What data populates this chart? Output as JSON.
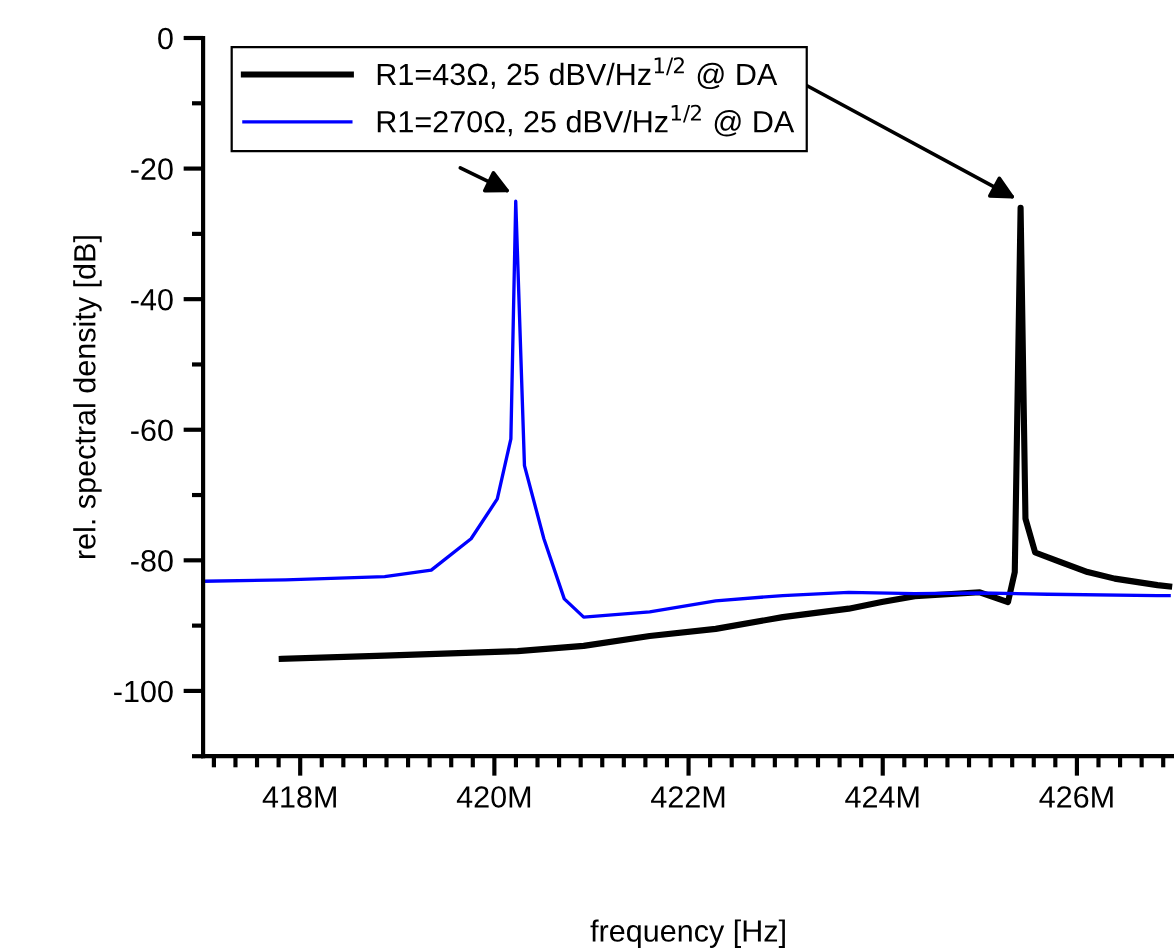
{
  "chart_data": {
    "type": "line",
    "xlabel": "frequency [Hz]",
    "ylabel": "rel. spectral density [dB]",
    "xlim": [
      417,
      427
    ],
    "ylim": [
      -110,
      0
    ],
    "xticks": [
      {
        "value": 418,
        "label": "418M"
      },
      {
        "value": 420,
        "label": "420M"
      },
      {
        "value": 422,
        "label": "422M"
      },
      {
        "value": 424,
        "label": "424M"
      },
      {
        "value": 426,
        "label": "426M"
      }
    ],
    "yticks": [
      0,
      -20,
      -40,
      -60,
      -80,
      -100
    ],
    "grid": false,
    "legend": "top left",
    "line_style": "solid",
    "marker": "none",
    "series": [
      {
        "name": "R1=43Ω, 25 dBV/Hz$^{1/2}$ @ DA",
        "color": "#000000",
        "x": [
          417.81,
          418.87,
          420.24,
          420.92,
          421.6,
          422.28,
          422.97,
          423.65,
          423.99,
          424.33,
          425.0,
          425.29,
          425.36,
          425.42,
          425.47,
          425.57,
          425.84,
          426.11,
          426.39,
          426.83,
          426.95
        ],
        "values": [
          -95.1,
          -94.6,
          -93.9,
          -93.1,
          -91.6,
          -90.5,
          -88.7,
          -87.4,
          -86.4,
          -85.5,
          -84.9,
          -86.4,
          -81.8,
          -26,
          -73.6,
          -78.8,
          -80.3,
          -81.8,
          -82.8,
          -83.8,
          -84
        ]
      },
      {
        "name": "R1=270Ω, 25 dBV/Hz$^{1/2}$ @ DA",
        "color": "#0000ff",
        "x": [
          417.0,
          417.85,
          418.87,
          419.35,
          419.76,
          420.03,
          420.17,
          420.22,
          420.31,
          420.51,
          420.72,
          420.92,
          421.6,
          422.28,
          422.97,
          423.65,
          424.33,
          425.0,
          425.7,
          426.83,
          426.95
        ],
        "values": [
          -83.2,
          -83,
          -82.5,
          -81.5,
          -76.7,
          -70.6,
          -61.4,
          -25,
          -65.5,
          -76.7,
          -85.9,
          -88.7,
          -87.9,
          -86.2,
          -85.4,
          -84.9,
          -85.1,
          -85,
          -85.2,
          -85.4,
          -85.4
        ]
      }
    ]
  }
}
